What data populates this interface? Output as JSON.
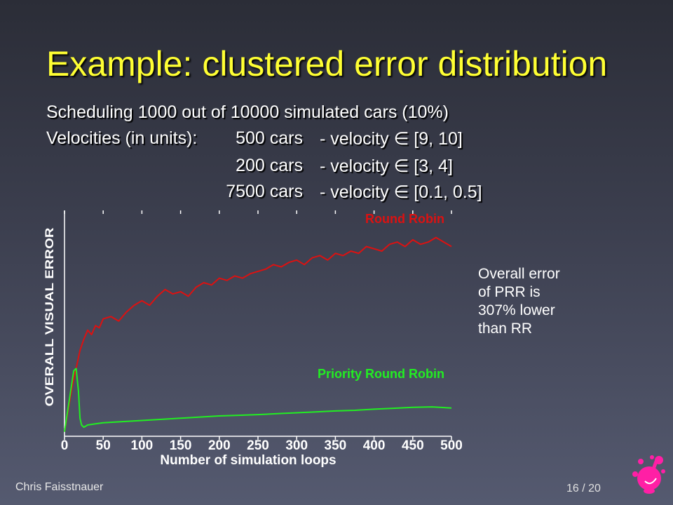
{
  "slide": {
    "title": "Example: clustered error distribution",
    "line1": "Scheduling 1000 out of 10000 simulated cars (10%)",
    "velocities_label": "Velocities (in units):",
    "rows": [
      {
        "cars": "500 cars",
        "velocity": "- velocity ∈ [9, 10]"
      },
      {
        "cars": "200 cars",
        "velocity": "- velocity ∈ [3, 4]"
      },
      {
        "cars": "7500 cars",
        "velocity": "- velocity ∈ [0.1, 0.5]"
      }
    ],
    "note": [
      "Overall error",
      "of PRR is",
      "307% lower",
      "than RR"
    ],
    "author": "Chris Faisstnauer",
    "page": "16 / 20"
  },
  "colors": {
    "title": "#ffff33",
    "round_robin": "#dd1111",
    "priority_round_robin": "#22ee22",
    "logo": "#ff1fa5"
  },
  "chart_data": {
    "type": "line",
    "xlabel": "Number of simulation loops",
    "ylabel": "OVERALL VISUAL ERROR",
    "xlim": [
      0,
      500
    ],
    "ylim": [
      0,
      100
    ],
    "xticks": [
      0,
      50,
      100,
      150,
      200,
      250,
      300,
      350,
      400,
      450,
      500
    ],
    "grid": false,
    "series": [
      {
        "name": "Round Robin",
        "color": "#dd1111",
        "x": [
          0,
          10,
          20,
          25,
          30,
          35,
          40,
          45,
          50,
          60,
          70,
          80,
          90,
          100,
          110,
          120,
          130,
          140,
          150,
          160,
          170,
          180,
          190,
          200,
          210,
          220,
          230,
          240,
          250,
          260,
          270,
          280,
          290,
          300,
          310,
          320,
          330,
          340,
          350,
          360,
          370,
          380,
          390,
          400,
          410,
          420,
          430,
          440,
          450,
          460,
          470,
          480,
          490,
          500
        ],
        "y": [
          2,
          22,
          38,
          43,
          47,
          45,
          49,
          48,
          52,
          53,
          51,
          55,
          58,
          60,
          58,
          62,
          65,
          63,
          64,
          62,
          66,
          68,
          67,
          70,
          69,
          71,
          70,
          72,
          73,
          74,
          76,
          75,
          77,
          78,
          76,
          79,
          80,
          78,
          81,
          80,
          82,
          81,
          84,
          83,
          82,
          85,
          86,
          84,
          87,
          85,
          86,
          88,
          86,
          84
        ]
      },
      {
        "name": "Priority Round Robin",
        "color": "#22ee22",
        "x": [
          0,
          8,
          12,
          15,
          18,
          20,
          22,
          25,
          30,
          40,
          50,
          75,
          100,
          125,
          150,
          175,
          200,
          225,
          250,
          275,
          300,
          325,
          350,
          375,
          400,
          425,
          450,
          475,
          500
        ],
        "y": [
          2,
          20,
          29,
          30,
          20,
          8,
          5,
          4,
          5,
          5.5,
          6,
          6.5,
          7,
          7.5,
          8,
          8.5,
          9,
          9.3,
          9.6,
          10,
          10.4,
          10.8,
          11.2,
          11.5,
          12,
          12.4,
          12.8,
          13,
          12.5
        ]
      }
    ]
  }
}
